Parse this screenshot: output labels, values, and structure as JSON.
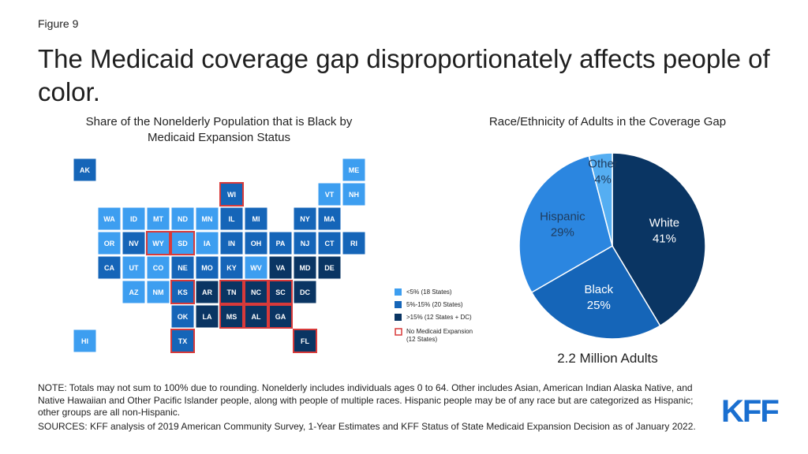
{
  "header": {
    "figure": "Figure 9",
    "title": "The Medicaid coverage gap disproportionately affects people of color."
  },
  "chart_data": [
    {
      "type": "map",
      "title": "Share of the Nonelderly Population that is Black by Medicaid Expansion Status",
      "categories": [
        {
          "label": "<5% (18 States)",
          "color": "#3d9ef0"
        },
        {
          "label": "5%-15% (20 States)",
          "color": "#1565b8"
        },
        {
          "label": ">15% (12 States + DC)",
          "color": "#0a3563"
        }
      ],
      "no_expansion": {
        "label": "No Medicaid Expansion (12 States)",
        "color": "#d83a3a"
      },
      "states": [
        {
          "label": "AK",
          "category": 1,
          "no_expansion": false
        },
        {
          "label": "ME",
          "category": 0,
          "no_expansion": false
        },
        {
          "label": "WI",
          "category": 1,
          "no_expansion": true
        },
        {
          "label": "VT",
          "category": 0,
          "no_expansion": false
        },
        {
          "label": "NH",
          "category": 0,
          "no_expansion": false
        },
        {
          "label": "WA",
          "category": 0,
          "no_expansion": false
        },
        {
          "label": "ID",
          "category": 0,
          "no_expansion": false
        },
        {
          "label": "MT",
          "category": 0,
          "no_expansion": false
        },
        {
          "label": "ND",
          "category": 0,
          "no_expansion": false
        },
        {
          "label": "MN",
          "category": 0,
          "no_expansion": false
        },
        {
          "label": "IL",
          "category": 1,
          "no_expansion": false
        },
        {
          "label": "MI",
          "category": 1,
          "no_expansion": false
        },
        {
          "label": "NY",
          "category": 1,
          "no_expansion": false
        },
        {
          "label": "MA",
          "category": 1,
          "no_expansion": false
        },
        {
          "label": "OR",
          "category": 0,
          "no_expansion": false
        },
        {
          "label": "NV",
          "category": 1,
          "no_expansion": false
        },
        {
          "label": "WY",
          "category": 0,
          "no_expansion": true
        },
        {
          "label": "SD",
          "category": 0,
          "no_expansion": true
        },
        {
          "label": "IA",
          "category": 0,
          "no_expansion": false
        },
        {
          "label": "IN",
          "category": 1,
          "no_expansion": false
        },
        {
          "label": "OH",
          "category": 1,
          "no_expansion": false
        },
        {
          "label": "PA",
          "category": 1,
          "no_expansion": false
        },
        {
          "label": "NJ",
          "category": 1,
          "no_expansion": false
        },
        {
          "label": "CT",
          "category": 1,
          "no_expansion": false
        },
        {
          "label": "RI",
          "category": 1,
          "no_expansion": false
        },
        {
          "label": "CA",
          "category": 1,
          "no_expansion": false
        },
        {
          "label": "UT",
          "category": 0,
          "no_expansion": false
        },
        {
          "label": "CO",
          "category": 0,
          "no_expansion": false
        },
        {
          "label": "NE",
          "category": 1,
          "no_expansion": false
        },
        {
          "label": "MO",
          "category": 1,
          "no_expansion": false
        },
        {
          "label": "KY",
          "category": 1,
          "no_expansion": false
        },
        {
          "label": "WV",
          "category": 0,
          "no_expansion": false
        },
        {
          "label": "VA",
          "category": 2,
          "no_expansion": false
        },
        {
          "label": "MD",
          "category": 2,
          "no_expansion": false
        },
        {
          "label": "DE",
          "category": 2,
          "no_expansion": false
        },
        {
          "label": "AZ",
          "category": 0,
          "no_expansion": false
        },
        {
          "label": "NM",
          "category": 0,
          "no_expansion": false
        },
        {
          "label": "KS",
          "category": 1,
          "no_expansion": true
        },
        {
          "label": "AR",
          "category": 2,
          "no_expansion": false
        },
        {
          "label": "TN",
          "category": 2,
          "no_expansion": true
        },
        {
          "label": "NC",
          "category": 2,
          "no_expansion": true
        },
        {
          "label": "SC",
          "category": 2,
          "no_expansion": true
        },
        {
          "label": "DC",
          "category": 2,
          "no_expansion": false
        },
        {
          "label": "OK",
          "category": 1,
          "no_expansion": false
        },
        {
          "label": "LA",
          "category": 2,
          "no_expansion": false
        },
        {
          "label": "MS",
          "category": 2,
          "no_expansion": true
        },
        {
          "label": "AL",
          "category": 2,
          "no_expansion": true
        },
        {
          "label": "GA",
          "category": 2,
          "no_expansion": true
        },
        {
          "label": "HI",
          "category": 0,
          "no_expansion": false
        },
        {
          "label": "TX",
          "category": 1,
          "no_expansion": true
        },
        {
          "label": "FL",
          "category": 2,
          "no_expansion": true
        }
      ]
    },
    {
      "type": "pie",
      "title": "Race/Ethnicity of Adults in the Coverage Gap",
      "subtitle": "2.2 Million Adults",
      "categories": [
        "White",
        "Black",
        "Hispanic",
        "Other"
      ],
      "values": [
        41,
        25,
        29,
        4
      ],
      "value_labels": [
        "41%",
        "25%",
        "29%",
        "4%"
      ],
      "colors": [
        "#0a3563",
        "#1565b8",
        "#2b86e0",
        "#55aef2"
      ]
    }
  ],
  "notes": "NOTE: Totals may not sum to 100% due to rounding. Nonelderly includes individuals ages 0 to 64. Other includes Asian, American Indian Alaska Native, and Native Hawaiian and Other Pacific Islander people, along with people of multiple races. Hispanic people may be of any race but are categorized as Hispanic; other groups are all non-Hispanic.",
  "sources": "SOURCES: KFF analysis of 2019 American Community Survey, 1-Year Estimates and KFF Status of State Medicaid Expansion Decision as of January 2022.",
  "logo": "KFF"
}
